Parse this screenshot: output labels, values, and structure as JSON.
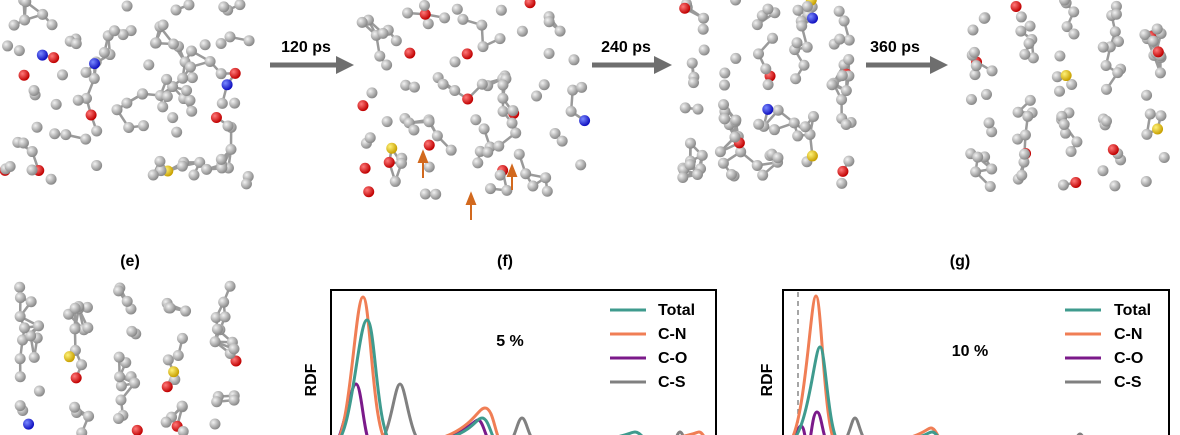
{
  "arrows": [
    {
      "label": "120 ps"
    },
    {
      "label": "240 ps"
    },
    {
      "label": "360 ps"
    }
  ],
  "panels": [
    {
      "label": "(e)"
    },
    {
      "label": "(f)",
      "y_label": "RDF",
      "annotation": "5 %",
      "legend": [
        "Total",
        "C-N",
        "C-O",
        "C-S"
      ]
    },
    {
      "label": "(g)",
      "y_label": "RDF",
      "annotation": "10 %",
      "legend": [
        "Total",
        "C-N",
        "C-O",
        "C-S"
      ]
    }
  ]
}
